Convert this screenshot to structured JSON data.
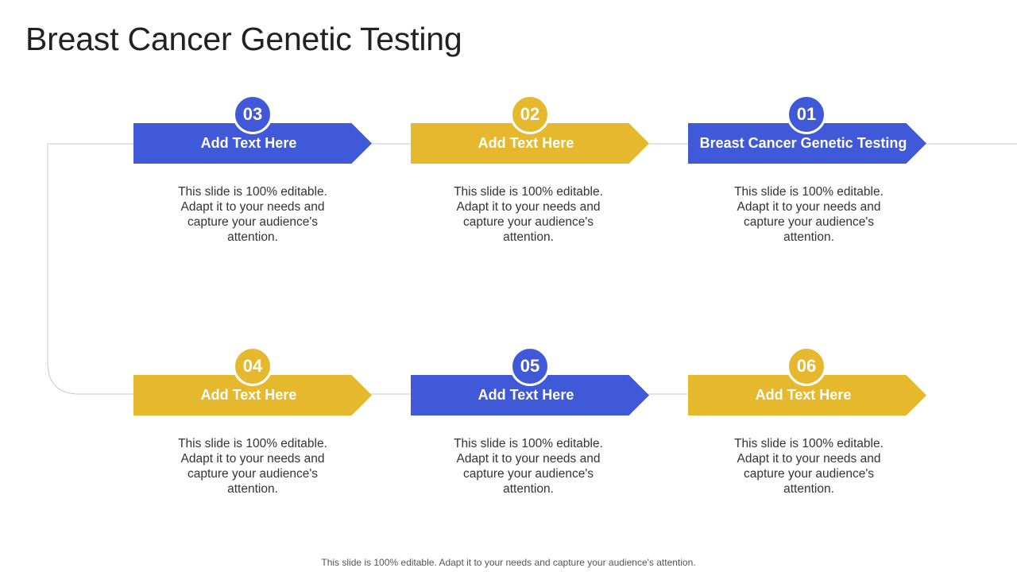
{
  "title": "Breast Cancer Genetic Testing",
  "colors": {
    "blue": "#4059d8",
    "gold": "#e6b82e",
    "line": "#c8c8c8"
  },
  "steps": [
    {
      "number": "03",
      "label": "Add Text Here",
      "color": "blue",
      "description": "This slide is 100% editable. Adapt it to your needs and capture your audience's attention."
    },
    {
      "number": "02",
      "label": "Add Text Here",
      "color": "gold",
      "description": "This slide is 100% editable. Adapt it to your needs and capture your audience's attention."
    },
    {
      "number": "01",
      "label": "Breast Cancer Genetic Testing",
      "color": "blue",
      "description": "This slide is 100% editable. Adapt it to your needs and capture your audience's attention."
    },
    {
      "number": "04",
      "label": "Add Text Here",
      "color": "gold",
      "description": "This slide is 100% editable. Adapt it to your needs and capture your audience's attention."
    },
    {
      "number": "05",
      "label": "Add Text Here",
      "color": "blue",
      "description": "This slide is 100% editable. Adapt it to your needs and capture your audience's attention."
    },
    {
      "number": "06",
      "label": "Add Text Here",
      "color": "gold",
      "description": "This slide is 100% editable. Adapt it to your needs and capture your audience's attention."
    }
  ],
  "footer": "This slide is 100% editable. Adapt it to your needs and capture your audience's attention."
}
